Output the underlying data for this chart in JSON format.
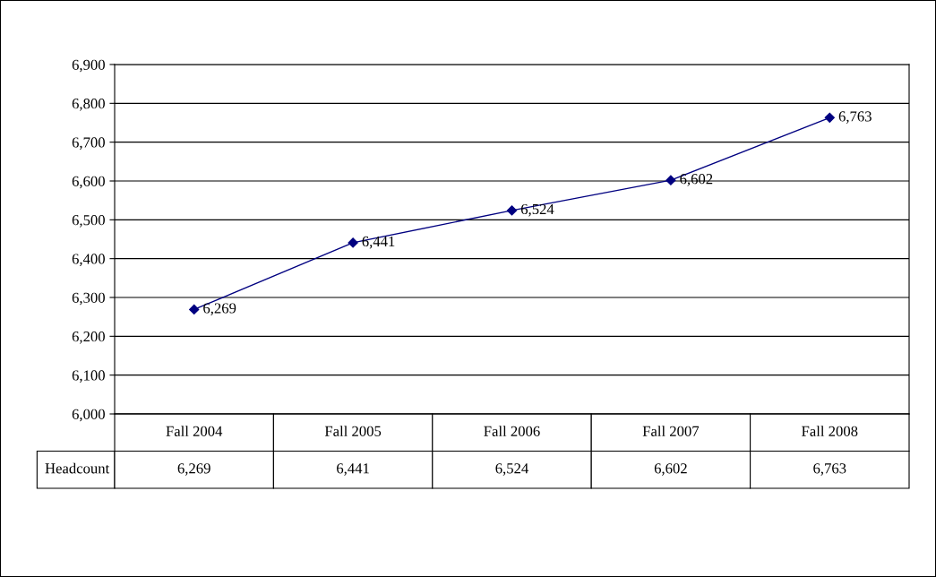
{
  "chart_data": {
    "type": "line",
    "categories": [
      "Fall 2004",
      "Fall 2005",
      "Fall 2006",
      "Fall 2007",
      "Fall 2008"
    ],
    "series": [
      {
        "name": "Headcount",
        "color": "#000080",
        "values": [
          6269,
          6441,
          6524,
          6602,
          6763
        ],
        "value_labels": [
          "6,269",
          "6,441",
          "6,524",
          "6,602",
          "6,763"
        ]
      }
    ],
    "ylim": [
      6000,
      6900
    ],
    "yticks": [
      {
        "value": 6000,
        "label": "6,000"
      },
      {
        "value": 6100,
        "label": "6,100"
      },
      {
        "value": 6200,
        "label": "6,200"
      },
      {
        "value": 6300,
        "label": "6,300"
      },
      {
        "value": 6400,
        "label": "6,400"
      },
      {
        "value": 6500,
        "label": "6,500"
      },
      {
        "value": 6600,
        "label": "6,600"
      },
      {
        "value": 6700,
        "label": "6,700"
      },
      {
        "value": 6800,
        "label": "6,800"
      },
      {
        "value": 6900,
        "label": "6,900"
      }
    ],
    "grid": "y",
    "marker": "diamond",
    "line_style": "solid",
    "legend": false
  }
}
